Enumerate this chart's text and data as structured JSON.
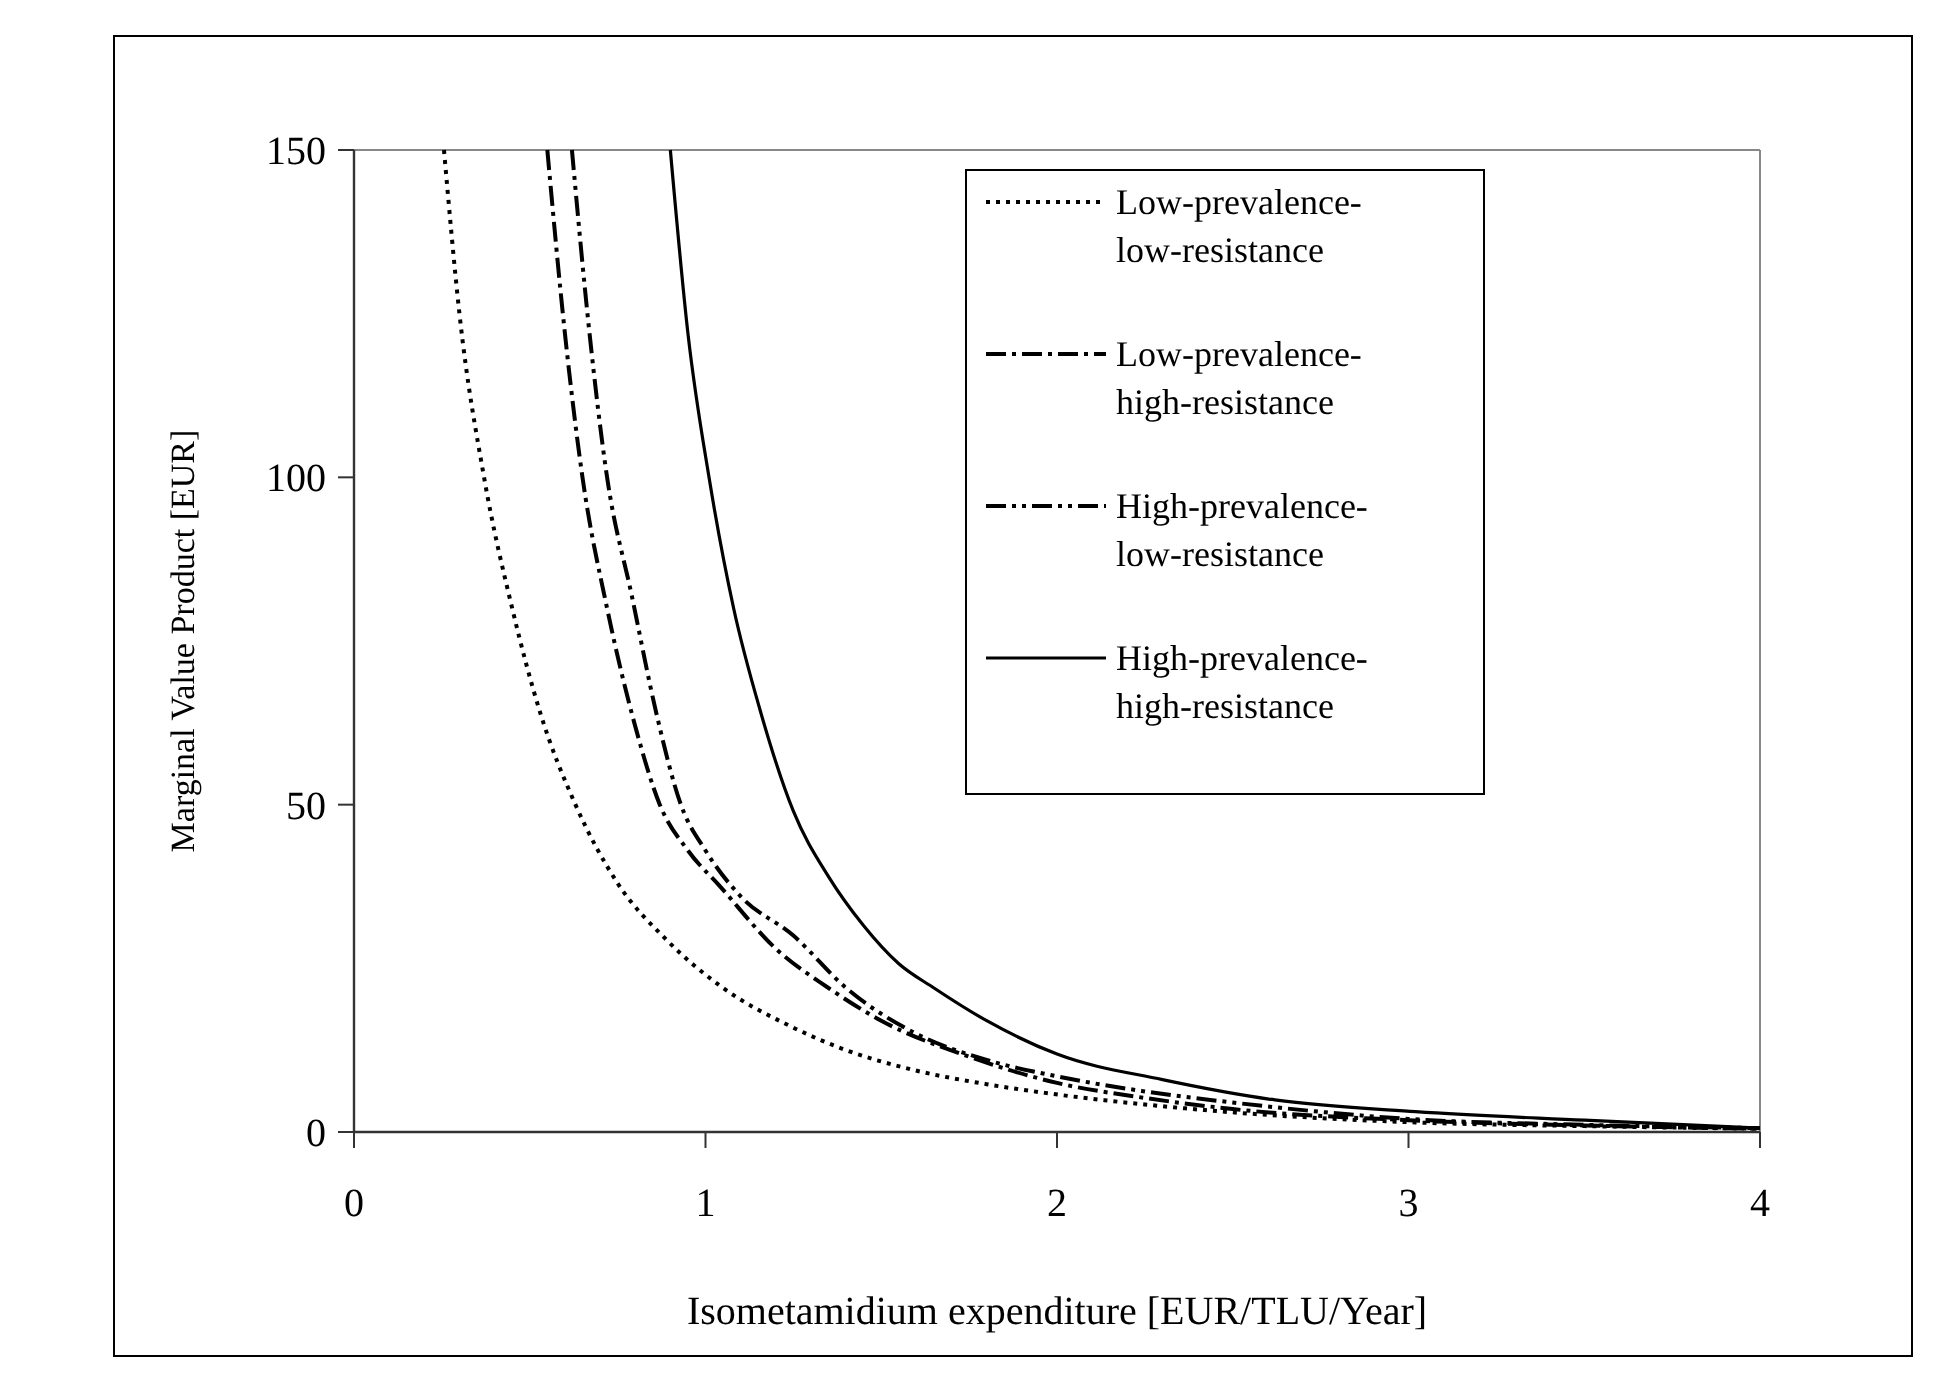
{
  "chart_data": {
    "type": "line",
    "xlabel": "Isometamidium expenditure [EUR/TLU/Year]",
    "ylabel": "Marginal Value Product [EUR]",
    "xlim": [
      0,
      4
    ],
    "xticks": [
      0,
      1,
      2,
      3,
      4
    ],
    "ylim": [
      0,
      150
    ],
    "yticks": [
      0,
      50,
      100,
      150
    ],
    "grid": false,
    "legend": "top right",
    "marker": "none",
    "series": [
      {
        "name": "Low-prevalence-low-resistance",
        "color": "#000000",
        "line_style": "dotted",
        "x": [
          0.256,
          0.3,
          0.37,
          0.45,
          0.53,
          0.63,
          0.75,
          0.89,
          1.05,
          1.24,
          1.4,
          1.59,
          1.8,
          1.99,
          2.25,
          2.5,
          3,
          3.5,
          4
        ],
        "values": [
          150,
          125,
          100,
          80,
          64,
          50,
          38,
          29.3,
          22,
          16.2,
          12.5,
          9.5,
          7.3,
          5.8,
          4.2,
          3,
          1.5,
          0.9,
          0.5
        ]
      },
      {
        "name": "Low-prevalence-high-resistance",
        "color": "#000000",
        "line_style": "dashdot",
        "x": [
          0.55,
          0.6,
          0.65,
          0.72,
          0.8,
          0.87,
          0.95,
          1.04,
          1.2,
          1.35,
          1.5,
          1.75,
          2,
          2.25,
          2.5,
          3,
          3.5,
          4
        ],
        "values": [
          150,
          122,
          100,
          80,
          62,
          50,
          43,
          37.6,
          28,
          22,
          17,
          11.5,
          7.5,
          5.2,
          3.5,
          1.8,
          1,
          0.5
        ]
      },
      {
        "name": "High-prevalence-low-resistance",
        "color": "#000000",
        "line_style": "dashdotdot",
        "x": [
          0.62,
          0.67,
          0.72,
          0.79,
          0.86,
          0.93,
          1.0,
          1.1,
          1.25,
          1.4,
          1.6,
          1.8,
          2,
          2.25,
          2.5,
          3,
          3.5,
          4
        ],
        "values": [
          150,
          122,
          100,
          82,
          64,
          50,
          43,
          36,
          30,
          22,
          15,
          11,
          8.5,
          6.2,
          4.5,
          2,
          1.1,
          0.6
        ]
      },
      {
        "name": "High-prevalence-high-resistance",
        "color": "#000000",
        "line_style": "solid",
        "x": [
          0.9,
          0.95,
          1.01,
          1.08,
          1.155,
          1.25,
          1.35,
          1.45,
          1.55,
          1.65,
          1.8,
          2.0,
          2.3,
          2.62,
          3.02,
          3.5,
          4.0
        ],
        "values": [
          150,
          122,
          100,
          80,
          64.5,
          49,
          39,
          31.5,
          25.7,
          22,
          17,
          11.9,
          8,
          4.9,
          3.1,
          1.8,
          0.6
        ]
      }
    ]
  }
}
